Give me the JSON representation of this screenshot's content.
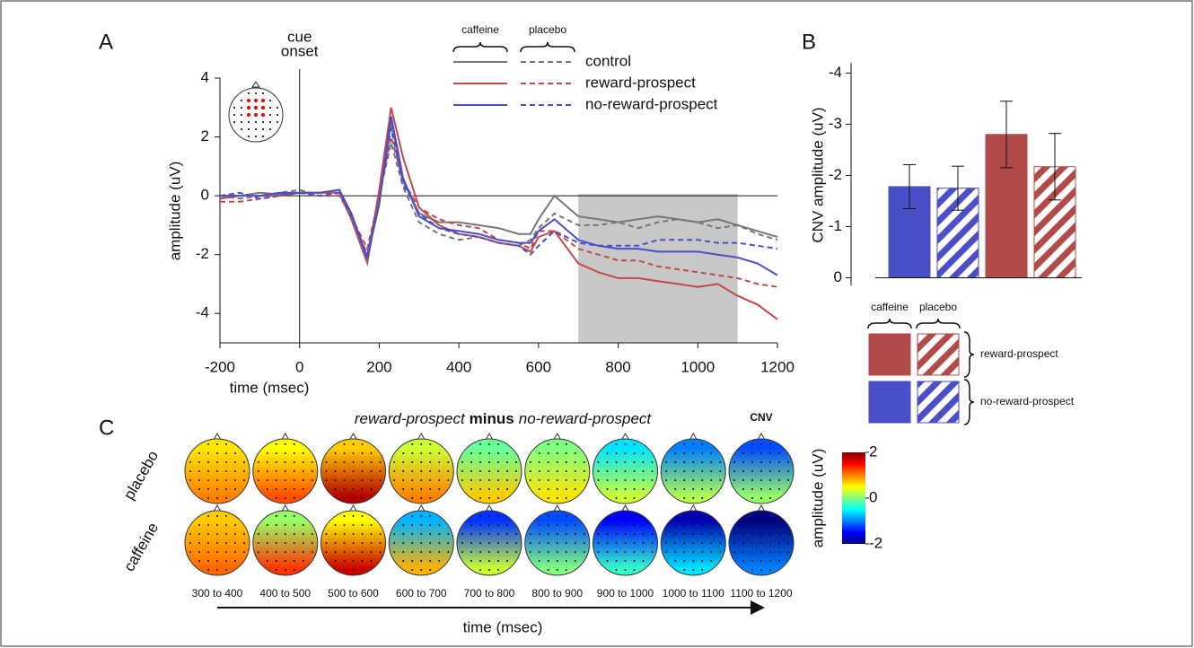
{
  "chart_data": [
    {
      "type": "line",
      "panel": "A",
      "xlabel": "time (msec)",
      "ylabel": "amplitude (uV)",
      "xlim": [
        -200,
        1200
      ],
      "xticks": [
        -200,
        0,
        200,
        400,
        600,
        800,
        1000,
        1200
      ],
      "ylim": [
        -5,
        4
      ],
      "yticks": [
        -4,
        -2,
        0,
        2,
        4
      ],
      "shade": [
        700,
        1100
      ],
      "cue": {
        "x": 0,
        "label": [
          "cue",
          "onset"
        ]
      },
      "legend_groups": [
        "caffeine",
        "placebo"
      ],
      "x": [
        -200,
        -150,
        -100,
        -50,
        0,
        50,
        100,
        130,
        170,
        200,
        230,
        260,
        300,
        350,
        400,
        450,
        500,
        550,
        580,
        600,
        640,
        700,
        750,
        800,
        850,
        900,
        950,
        1000,
        1050,
        1100,
        1150,
        1200
      ],
      "series": [
        {
          "name": "control",
          "group": "caffeine",
          "color": "#777777",
          "dashed": false,
          "values": [
            0,
            0,
            0.1,
            0.05,
            0.1,
            0.1,
            0.2,
            -0.8,
            -2.3,
            0,
            2.5,
            0.5,
            -0.6,
            -0.9,
            -0.9,
            -1.0,
            -1.1,
            -1.3,
            -1.3,
            -0.8,
            0,
            -0.7,
            -0.8,
            -0.9,
            -0.8,
            -0.7,
            -0.8,
            -0.9,
            -0.8,
            -1.0,
            -1.2,
            -1.4
          ]
        },
        {
          "name": "control",
          "group": "placebo",
          "color": "#777777",
          "dashed": true,
          "values": [
            0,
            -0.1,
            0,
            0.1,
            0.2,
            0,
            0.1,
            -0.8,
            -2.0,
            0,
            1.8,
            0.3,
            -0.9,
            -1.3,
            -1.5,
            -1.4,
            -1.6,
            -1.7,
            -1.5,
            -1.1,
            -0.6,
            -1.0,
            -1.0,
            -0.9,
            -1.1,
            -0.9,
            -0.8,
            -0.9,
            -1.1,
            -1.0,
            -1.3,
            -1.5
          ]
        },
        {
          "name": "reward-prospect",
          "group": "caffeine",
          "color": "#c0494a",
          "dashed": false,
          "values": [
            -0.1,
            0,
            0,
            0,
            0.1,
            0.1,
            0.1,
            -0.8,
            -2.2,
            0.2,
            3.0,
            1.3,
            -0.4,
            -1.0,
            -1.3,
            -1.4,
            -1.6,
            -1.7,
            -1.9,
            -1.4,
            -1.2,
            -2.3,
            -2.6,
            -2.8,
            -2.8,
            -2.9,
            -3.0,
            -3.1,
            -3.0,
            -3.4,
            -3.7,
            -4.2
          ]
        },
        {
          "name": "reward-prospect",
          "group": "placebo",
          "color": "#c0494a",
          "dashed": true,
          "values": [
            -0.2,
            -0.2,
            -0.1,
            0,
            0.1,
            0,
            0,
            -0.7,
            -1.8,
            0,
            2.0,
            0.5,
            -0.4,
            -0.8,
            -1.0,
            -1.1,
            -1.5,
            -1.6,
            -1.8,
            -1.2,
            -1.2,
            -1.8,
            -2.0,
            -2.2,
            -2.2,
            -2.4,
            -2.5,
            -2.6,
            -2.7,
            -2.8,
            -3.0,
            -3.1
          ]
        },
        {
          "name": "no-reward-prospect",
          "group": "caffeine",
          "color": "#4a4fc8",
          "dashed": false,
          "values": [
            0,
            0,
            0,
            0.1,
            0.1,
            0.1,
            0.2,
            -0.6,
            -2.1,
            -0.3,
            2.7,
            0.6,
            -0.7,
            -1.1,
            -1.2,
            -1.3,
            -1.5,
            -1.6,
            -1.6,
            -1.2,
            -0.8,
            -1.5,
            -1.7,
            -1.8,
            -1.8,
            -1.9,
            -1.9,
            -1.9,
            -2.0,
            -2.1,
            -2.3,
            -2.7
          ]
        },
        {
          "name": "no-reward-prospect",
          "group": "placebo",
          "color": "#4a4fc8",
          "dashed": true,
          "values": [
            0,
            0.1,
            -0.1,
            0,
            0.1,
            0,
            0.1,
            -0.7,
            -2.0,
            -0.2,
            2.3,
            0.4,
            -0.6,
            -1.1,
            -1.3,
            -1.4,
            -1.6,
            -1.7,
            -2.0,
            -1.7,
            -1.2,
            -1.6,
            -1.7,
            -1.7,
            -1.7,
            -1.5,
            -1.5,
            -1.5,
            -1.6,
            -1.6,
            -1.7,
            -1.8
          ]
        }
      ]
    },
    {
      "type": "bar",
      "panel": "B",
      "ylabel": "CNV amplitude (uV)",
      "ylim": [
        0.15,
        -4.2
      ],
      "yticks": [
        0,
        -1,
        -2,
        -3,
        -4
      ],
      "categories": [
        "no-reward-prospect",
        "reward-prospect"
      ],
      "category_colors": [
        "#4a4fc8",
        "#b34a4a"
      ],
      "series": [
        {
          "name": "caffeine",
          "hatch": false,
          "values": [
            -1.78,
            -2.8
          ],
          "errors": [
            0.43,
            0.65
          ]
        },
        {
          "name": "placebo",
          "hatch": true,
          "values": [
            -1.75,
            -2.17
          ],
          "errors": [
            0.43,
            0.65
          ]
        }
      ]
    },
    {
      "type": "topomap",
      "panel": "C",
      "title_parts": [
        {
          "text": "reward-prospect",
          "style": "italic"
        },
        {
          "text": "minus",
          "style": "bold"
        },
        {
          "text": "no-reward-prospect",
          "style": "italic"
        }
      ],
      "annotation": "CNV",
      "columns": [
        "300 to 400",
        "400 to 500",
        "500 to 600",
        "600 to 700",
        "700 to 800",
        "800 to 900",
        "900 to 1000",
        "1000 to 1100",
        "1100 to 1200"
      ],
      "rows": [
        {
          "name": "placebo",
          "front": [
            0.6,
            0.5,
            0.7,
            0.3,
            -0.1,
            0,
            -0.6,
            -1.0,
            -1.2
          ],
          "back": [
            1.0,
            1.2,
            1.8,
            1.0,
            0.7,
            0.6,
            0.3,
            0.2,
            0.1
          ]
        },
        {
          "name": "caffeine",
          "front": [
            0.7,
            0.1,
            0.5,
            -0.8,
            -1.3,
            -1.2,
            -1.5,
            -1.8,
            -2.0
          ],
          "back": [
            1.1,
            1.3,
            1.7,
            0.8,
            0.3,
            0,
            -0.3,
            -0.6,
            -1.0
          ]
        }
      ],
      "clim": [
        -2,
        2
      ],
      "cticks": [
        -2,
        0,
        2
      ],
      "colorbar_label": "amplitude (uV)",
      "xlabel": "time (msec)"
    }
  ]
}
